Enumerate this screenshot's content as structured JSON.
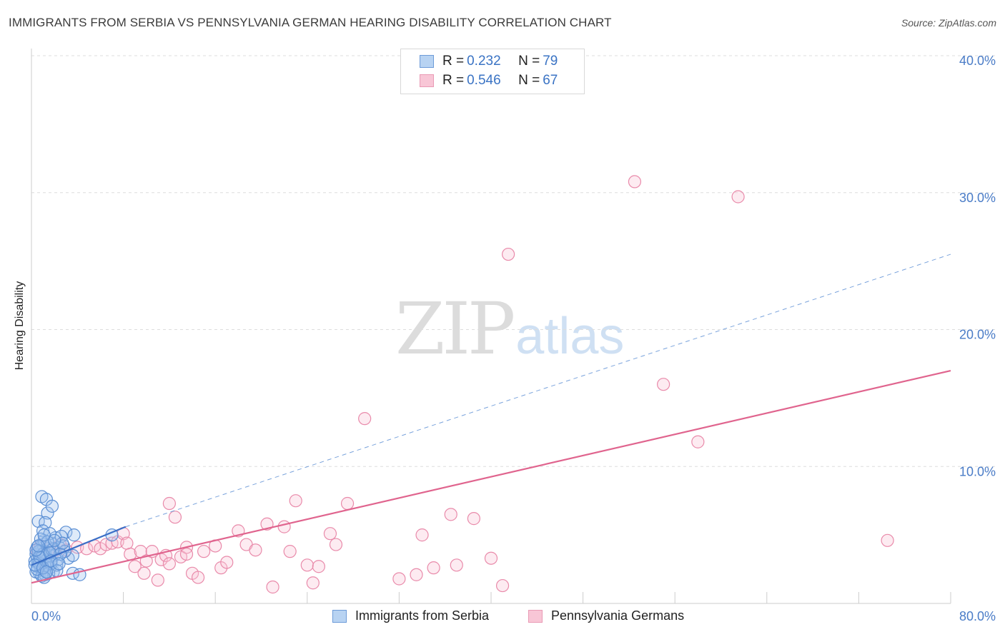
{
  "title": "IMMIGRANTS FROM SERBIA VS PENNSYLVANIA GERMAN HEARING DISABILITY CORRELATION CHART",
  "source": "Source: ZipAtlas.com",
  "watermark": {
    "zip": "ZIP",
    "atlas": "atlas"
  },
  "colors": {
    "blue": "#4a7cc7",
    "blue_fill": "#b8d3f2",
    "pink": "#e57399",
    "pink_fill": "#f8c6d6",
    "grid": "#dddddd",
    "tick": "#4a7cc7"
  },
  "legend": {
    "rows": [
      {
        "r_label": "R = ",
        "r_value": "0.232",
        "n_label": "N = ",
        "n_value": "79"
      },
      {
        "r_label": "R = ",
        "r_value": "0.546",
        "n_label": "N = ",
        "n_value": "67"
      }
    ]
  },
  "bottom_legend": [
    "Immigrants from Serbia",
    "Pennsylvania Germans"
  ],
  "chart_data": {
    "type": "scatter",
    "title": "IMMIGRANTS FROM SERBIA VS PENNSYLVANIA GERMAN HEARING DISABILITY CORRELATION CHART",
    "xlabel": "",
    "ylabel": "Hearing Disability",
    "xlim": [
      0,
      80
    ],
    "ylim": [
      0,
      40
    ],
    "x_tick_labels": [
      {
        "value": 0,
        "label": "0.0%"
      },
      {
        "value": 80,
        "label": "80.0%"
      }
    ],
    "y_tick_labels": [
      {
        "value": 10,
        "label": "10.0%"
      },
      {
        "value": 20,
        "label": "20.0%"
      },
      {
        "value": 30,
        "label": "30.0%"
      },
      {
        "value": 40,
        "label": "40.0%"
      }
    ],
    "grid": true,
    "series": [
      {
        "name": "Immigrants from Serbia",
        "color": "blue",
        "r": 0.232,
        "n": 79,
        "points": [
          [
            0.5,
            3.2
          ],
          [
            0.6,
            2.9
          ],
          [
            0.7,
            3.5
          ],
          [
            0.8,
            2.6
          ],
          [
            0.9,
            3.8
          ],
          [
            1.0,
            3.1
          ],
          [
            1.1,
            2.4
          ],
          [
            1.2,
            3.3
          ],
          [
            1.3,
            4.0
          ],
          [
            1.4,
            2.8
          ],
          [
            0.4,
            3.6
          ],
          [
            0.5,
            2.7
          ],
          [
            0.6,
            3.0
          ],
          [
            0.7,
            2.2
          ],
          [
            0.8,
            3.9
          ],
          [
            0.9,
            2.5
          ],
          [
            1.0,
            4.3
          ],
          [
            1.1,
            3.7
          ],
          [
            1.2,
            2.1
          ],
          [
            1.3,
            3.4
          ],
          [
            0.3,
            3.1
          ],
          [
            0.4,
            2.3
          ],
          [
            0.5,
            4.1
          ],
          [
            0.6,
            3.8
          ],
          [
            0.7,
            2.9
          ],
          [
            0.8,
            3.3
          ],
          [
            0.9,
            2.0
          ],
          [
            1.0,
            3.6
          ],
          [
            1.1,
            4.6
          ],
          [
            1.2,
            2.7
          ],
          [
            1.5,
            3.0
          ],
          [
            1.6,
            2.6
          ],
          [
            1.7,
            4.4
          ],
          [
            1.8,
            3.9
          ],
          [
            1.9,
            2.3
          ],
          [
            2.0,
            3.5
          ],
          [
            2.1,
            4.8
          ],
          [
            2.2,
            2.8
          ],
          [
            2.3,
            3.2
          ],
          [
            2.4,
            4.1
          ],
          [
            0.9,
            7.8
          ],
          [
            1.3,
            7.6
          ],
          [
            1.4,
            6.6
          ],
          [
            1.8,
            7.1
          ],
          [
            0.6,
            6.0
          ],
          [
            1.2,
            5.9
          ],
          [
            1.0,
            5.3
          ],
          [
            1.6,
            5.1
          ],
          [
            3.0,
            5.2
          ],
          [
            3.7,
            5.0
          ],
          [
            2.6,
            4.9
          ],
          [
            2.8,
            4.2
          ],
          [
            3.2,
            3.3
          ],
          [
            3.6,
            3.5
          ],
          [
            2.9,
            3.8
          ],
          [
            1.7,
            2.9
          ],
          [
            1.5,
            2.2
          ],
          [
            1.1,
            1.9
          ],
          [
            3.6,
            2.2
          ],
          [
            4.2,
            2.1
          ],
          [
            0.8,
            4.7
          ],
          [
            1.9,
            4.0
          ],
          [
            2.5,
            3.6
          ],
          [
            0.5,
            2.5
          ],
          [
            0.7,
            3.4
          ],
          [
            1.4,
            4.5
          ],
          [
            1.6,
            3.7
          ],
          [
            2.2,
            2.4
          ],
          [
            2.7,
            4.4
          ],
          [
            0.3,
            2.8
          ],
          [
            0.4,
            3.9
          ],
          [
            1.0,
            2.6
          ],
          [
            1.3,
            2.3
          ],
          [
            1.7,
            3.1
          ],
          [
            2.0,
            4.6
          ],
          [
            2.4,
            2.9
          ],
          [
            0.6,
            4.2
          ],
          [
            1.1,
            5.0
          ],
          [
            7.0,
            5.0
          ]
        ],
        "trend": {
          "x0": 0,
          "y0": 2.8,
          "x1": 8.2,
          "y1": 5.6,
          "dashed_to_x": 80,
          "dashed_to_y": 25.5
        }
      },
      {
        "name": "Pennsylvania Germans",
        "color": "pink",
        "r": 0.546,
        "n": 67,
        "points": [
          [
            0.5,
            3.9
          ],
          [
            0.8,
            4.2
          ],
          [
            1.0,
            3.5
          ],
          [
            1.5,
            4.0
          ],
          [
            2.0,
            3.8
          ],
          [
            2.5,
            4.3
          ],
          [
            3.0,
            3.9
          ],
          [
            4.0,
            4.1
          ],
          [
            4.8,
            4.0
          ],
          [
            5.5,
            4.2
          ],
          [
            6.0,
            4.0
          ],
          [
            6.5,
            4.3
          ],
          [
            7.0,
            4.4
          ],
          [
            7.5,
            4.5
          ],
          [
            8.0,
            5.1
          ],
          [
            8.3,
            4.4
          ],
          [
            8.6,
            3.6
          ],
          [
            9.0,
            2.7
          ],
          [
            9.5,
            3.8
          ],
          [
            10.0,
            3.1
          ],
          [
            10.5,
            3.8
          ],
          [
            11.0,
            1.7
          ],
          [
            11.3,
            3.2
          ],
          [
            11.7,
            3.5
          ],
          [
            12.0,
            2.9
          ],
          [
            12.5,
            6.3
          ],
          [
            13.0,
            3.4
          ],
          [
            13.5,
            4.1
          ],
          [
            14.0,
            2.2
          ],
          [
            14.5,
            1.9
          ],
          [
            15.0,
            3.8
          ],
          [
            16.0,
            4.2
          ],
          [
            16.5,
            2.6
          ],
          [
            17.0,
            3.0
          ],
          [
            18.0,
            5.3
          ],
          [
            18.7,
            4.3
          ],
          [
            19.5,
            3.9
          ],
          [
            20.5,
            5.8
          ],
          [
            21.0,
            1.2
          ],
          [
            22.0,
            5.6
          ],
          [
            22.5,
            3.8
          ],
          [
            23.0,
            7.5
          ],
          [
            24.0,
            2.8
          ],
          [
            24.5,
            1.5
          ],
          [
            25.0,
            2.7
          ],
          [
            26.0,
            5.1
          ],
          [
            26.5,
            4.3
          ],
          [
            27.5,
            7.3
          ],
          [
            29.0,
            13.5
          ],
          [
            32.0,
            1.8
          ],
          [
            33.5,
            2.1
          ],
          [
            34.0,
            5.0
          ],
          [
            35.0,
            2.6
          ],
          [
            36.5,
            6.5
          ],
          [
            37.0,
            2.8
          ],
          [
            38.5,
            6.2
          ],
          [
            40.0,
            3.3
          ],
          [
            41.0,
            1.3
          ],
          [
            41.5,
            25.5
          ],
          [
            52.5,
            30.8
          ],
          [
            55.0,
            16.0
          ],
          [
            58.0,
            11.8
          ],
          [
            61.5,
            29.7
          ],
          [
            74.5,
            4.6
          ],
          [
            12.0,
            7.3
          ],
          [
            13.5,
            3.6
          ],
          [
            9.8,
            2.2
          ]
        ],
        "trend": {
          "x0": 0,
          "y0": 1.5,
          "x1": 80,
          "y1": 17.0
        }
      }
    ]
  }
}
